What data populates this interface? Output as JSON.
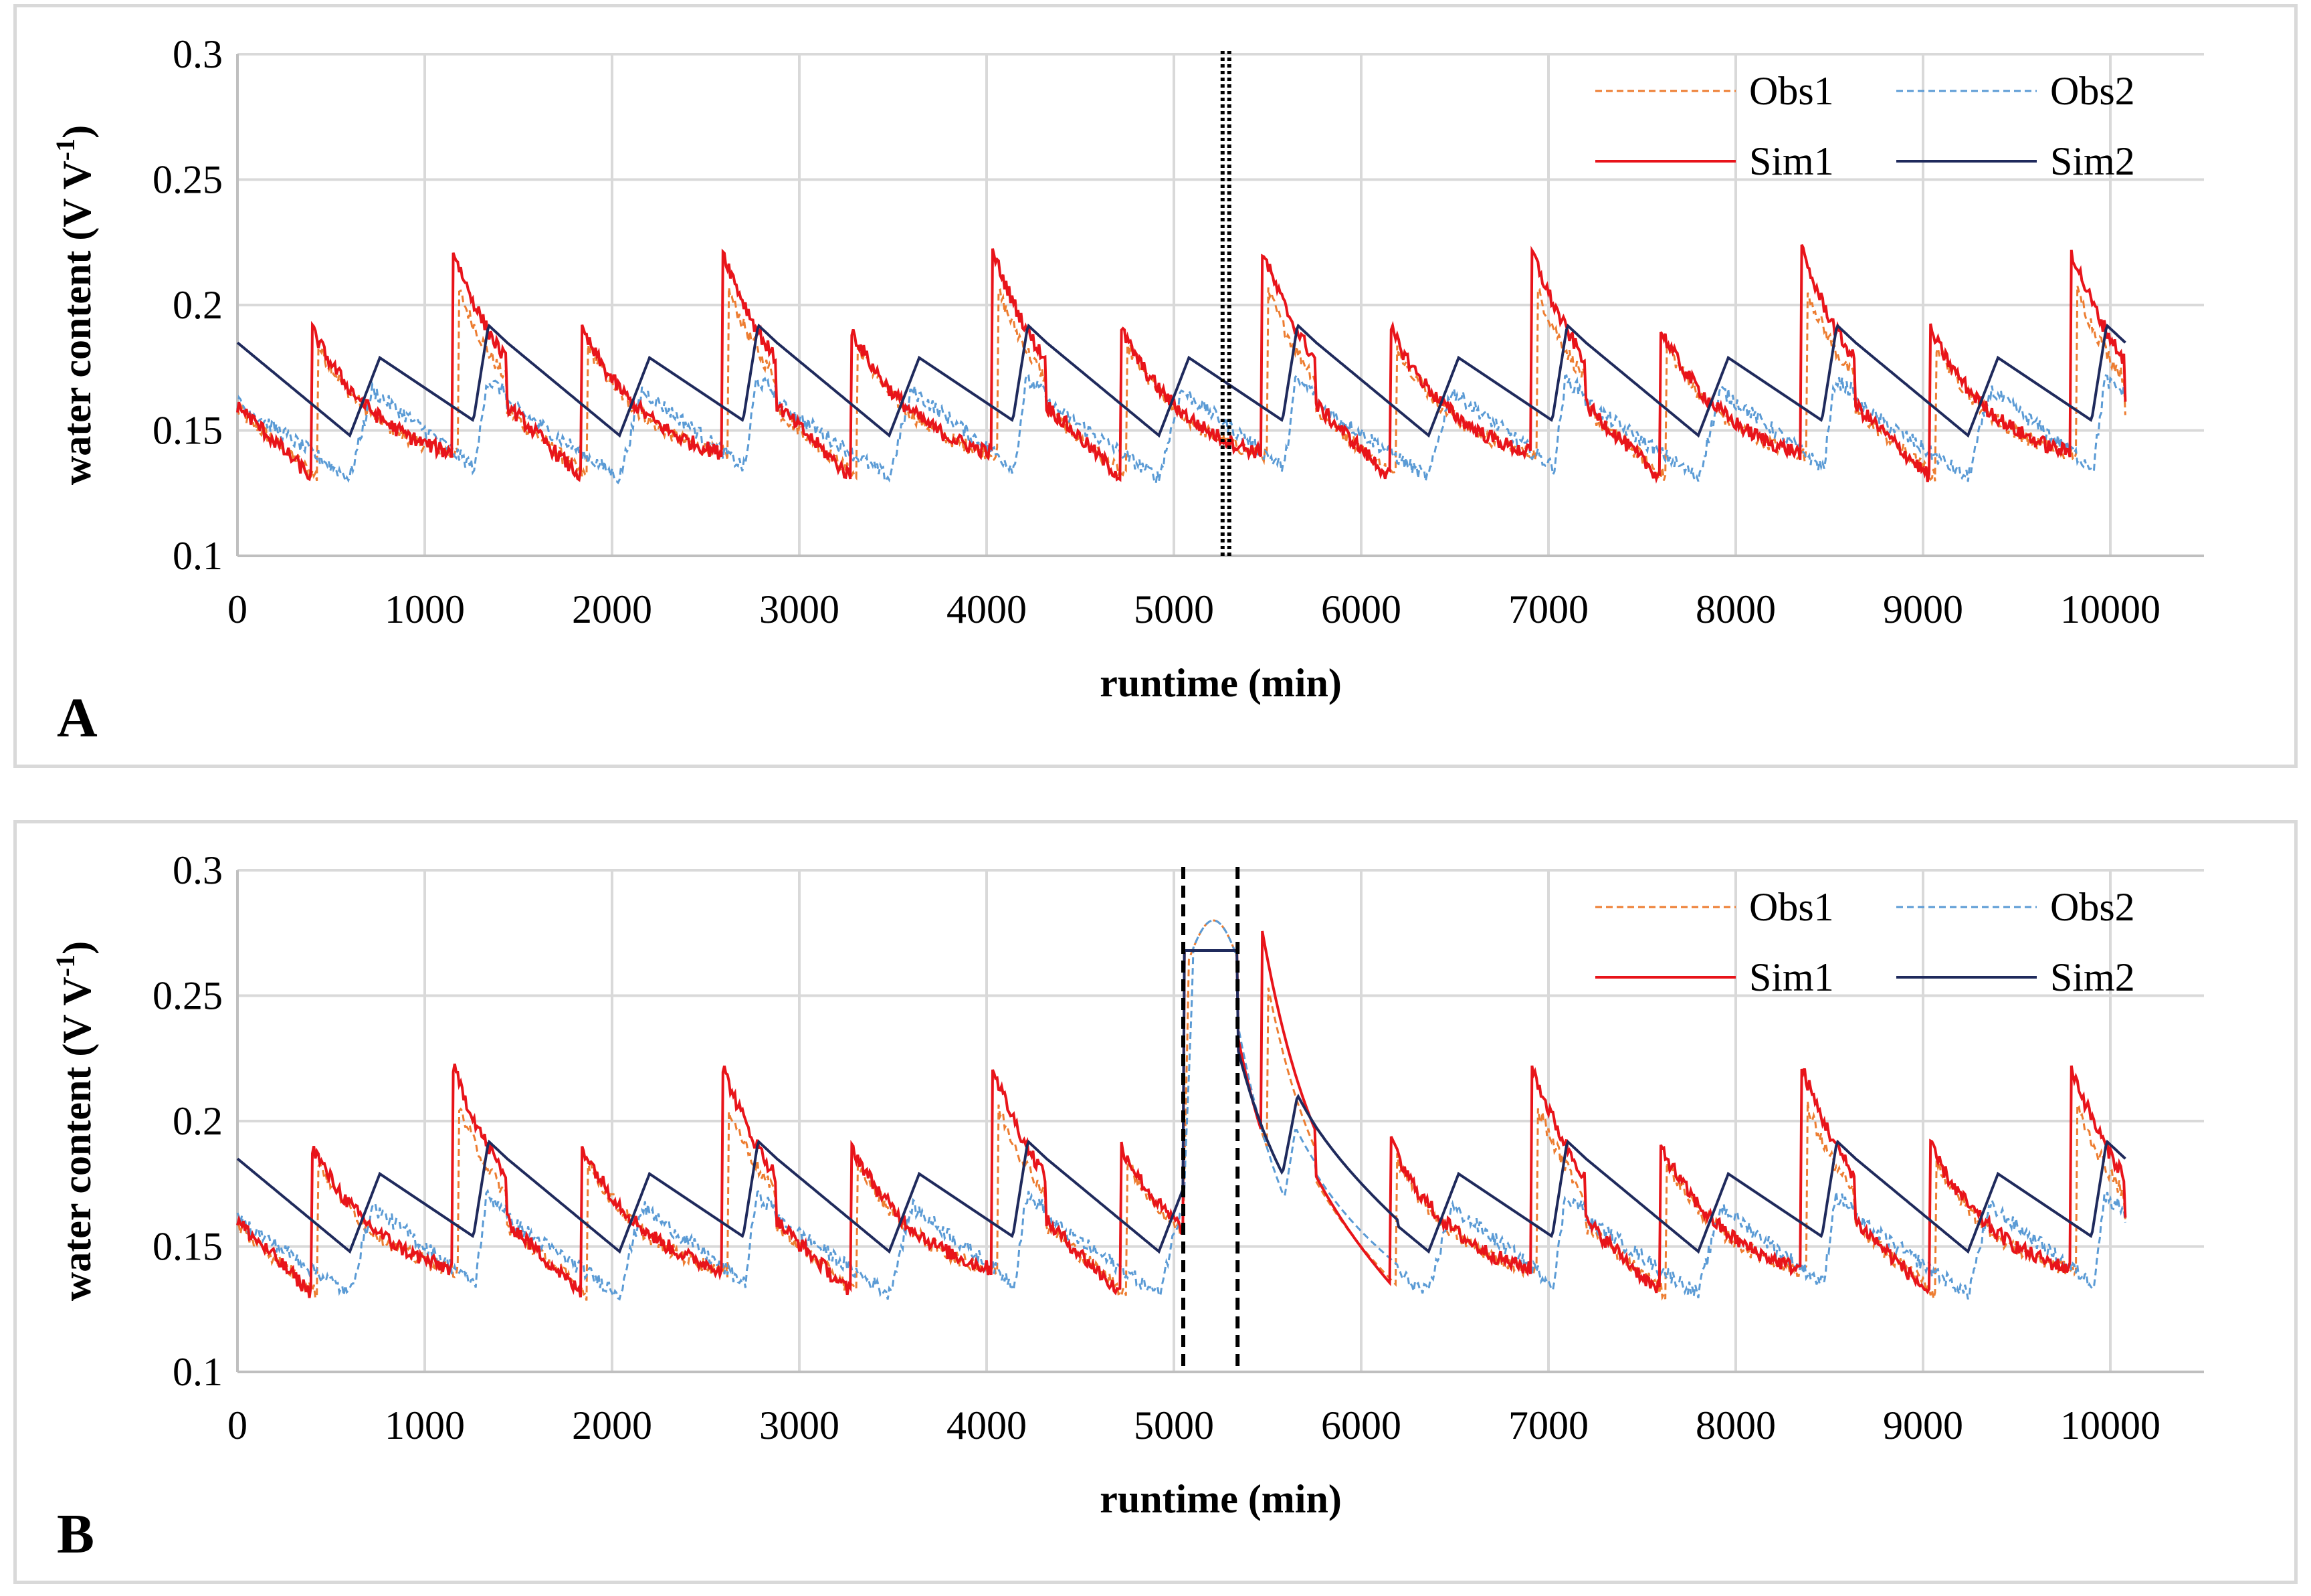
{
  "colors": {
    "obs1": "#ed7d31",
    "obs2": "#5b9bd5",
    "sim1": "#e8141a",
    "sim2": "#1f2a5c",
    "grid": "#d9d9d9",
    "axis": "#bfbfbf"
  },
  "chart_data": [
    {
      "panel": "A",
      "type": "line",
      "xlabel": "runtime (min)",
      "ylabel_main": "water content (V V",
      "ylabel_sup": "-1",
      "ylabel_close": ")",
      "xlim": [
        0,
        10500
      ],
      "ylim": [
        0.1,
        0.3
      ],
      "xticks": [
        "0",
        "1000",
        "2000",
        "3000",
        "4000",
        "5000",
        "6000",
        "7000",
        "8000",
        "9000",
        "10000"
      ],
      "xtick_values": [
        0,
        1000,
        2000,
        3000,
        4000,
        5000,
        6000,
        7000,
        8000,
        9000,
        10000
      ],
      "yticks": [
        "0.1",
        "0.15",
        "0.2",
        "0.25",
        "0.3"
      ],
      "ytick_values": [
        0.1,
        0.15,
        0.2,
        0.25,
        0.3
      ],
      "legend": [
        "Obs1",
        "Obs2",
        "Sim1",
        "Sim2"
      ],
      "legend_position": "top-right",
      "event_marker": {
        "style": "dotted",
        "x": [
          5260
        ]
      },
      "cycle_period_min": 1440,
      "series": [
        {
          "name": "Obs1",
          "style": "dashed",
          "description": "daily cycle",
          "x": [
            0,
            420,
            480,
            560,
            700,
            1000,
            1150,
            1180,
            1250,
            1300,
            1440
          ],
          "y": [
            0.16,
            0.131,
            0.18,
            0.184,
            0.175,
            0.135,
            0.133,
            0.2,
            0.205,
            0.18,
            0.16
          ]
        },
        {
          "name": "Obs2",
          "style": "dashed",
          "description": "daily cycle",
          "x": [
            0,
            150,
            300,
            600,
            630,
            700,
            750,
            1000,
            1200,
            1280,
            1330,
            1440
          ],
          "y": [
            0.162,
            0.148,
            0.142,
            0.131,
            0.155,
            0.165,
            0.16,
            0.142,
            0.136,
            0.134,
            0.17,
            0.165
          ]
        },
        {
          "name": "Sim1",
          "style": "solid",
          "description": "daily cycle",
          "x": [
            0,
            200,
            390,
            400,
            500,
            700,
            1000,
            1140,
            1150,
            1210,
            1300,
            1440
          ],
          "y": [
            0.16,
            0.14,
            0.131,
            0.18,
            0.193,
            0.16,
            0.138,
            0.134,
            0.21,
            0.223,
            0.175,
            0.16
          ]
        },
        {
          "name": "Sim2",
          "style": "solid",
          "description": "daily cycle",
          "x": [
            0,
            300,
            600,
            750,
            1000,
            1250,
            1330,
            1440
          ],
          "y": [
            0.185,
            0.162,
            0.148,
            0.179,
            0.167,
            0.155,
            0.192,
            0.185
          ]
        }
      ]
    },
    {
      "panel": "B",
      "type": "line",
      "xlabel": "runtime (min)",
      "ylabel_main": "water content (V V",
      "ylabel_sup": "-1",
      "ylabel_close": ")",
      "xlim": [
        0,
        10500
      ],
      "ylim": [
        0.1,
        0.3
      ],
      "xticks": [
        "0",
        "1000",
        "2000",
        "3000",
        "4000",
        "5000",
        "6000",
        "7000",
        "8000",
        "9000",
        "10000"
      ],
      "xtick_values": [
        0,
        1000,
        2000,
        3000,
        4000,
        5000,
        6000,
        7000,
        8000,
        9000,
        10000
      ],
      "yticks": [
        "0.1",
        "0.15",
        "0.2",
        "0.25",
        "0.3"
      ],
      "ytick_values": [
        0.1,
        0.15,
        0.2,
        0.25,
        0.3
      ],
      "legend": [
        "Obs1",
        "Obs2",
        "Sim1",
        "Sim2"
      ],
      "legend_position": "top-right",
      "event_marker": {
        "style": "dashed",
        "x": [
          5050,
          5340
        ]
      },
      "flood_event": {
        "start": 5050,
        "end": 5340,
        "sim_level": 0.268,
        "obs_peak": 0.281
      },
      "cycle_period_min": 1440,
      "series": [
        {
          "name": "Obs1",
          "style": "dashed",
          "description": "daily cycle with flood event"
        },
        {
          "name": "Obs2",
          "style": "dashed",
          "description": "daily cycle with flood event"
        },
        {
          "name": "Sim1",
          "style": "solid",
          "description": "daily cycle with flood event"
        },
        {
          "name": "Sim2",
          "style": "solid",
          "description": "daily cycle with flood event"
        }
      ]
    }
  ],
  "panels": {
    "a": {
      "letter": "A"
    },
    "b": {
      "letter": "B"
    }
  }
}
